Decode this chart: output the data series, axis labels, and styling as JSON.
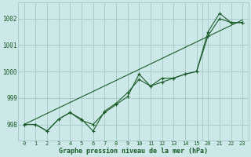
{
  "xlabel": "Graphe pression niveau de la mer (hPa)",
  "bg_color": "#cce8e8",
  "grid_color": "#aacccc",
  "line_color": "#1a5c28",
  "marker_color": "#1a5c28",
  "series1": [
    [
      0,
      998.0
    ],
    [
      1,
      998.0
    ],
    [
      2,
      997.75
    ],
    [
      3,
      998.2
    ],
    [
      4,
      998.45
    ],
    [
      5,
      998.15
    ],
    [
      6,
      998.0
    ],
    [
      7,
      998.45
    ],
    [
      8,
      998.75
    ],
    [
      9,
      999.05
    ],
    [
      10,
      999.9
    ],
    [
      11,
      999.45
    ],
    [
      12,
      999.75
    ],
    [
      13,
      999.75
    ],
    [
      14,
      999.9
    ],
    [
      15,
      1000.0
    ],
    [
      20,
      1001.5
    ],
    [
      21,
      1002.2
    ],
    [
      22,
      1001.85
    ],
    [
      23,
      1001.85
    ]
  ],
  "series2": [
    [
      0,
      998.0
    ],
    [
      1,
      998.0
    ],
    [
      2,
      997.75
    ],
    [
      3,
      998.2
    ],
    [
      4,
      998.45
    ],
    [
      5,
      998.2
    ],
    [
      6,
      997.75
    ],
    [
      7,
      998.5
    ],
    [
      8,
      998.8
    ],
    [
      9,
      999.2
    ],
    [
      10,
      999.7
    ],
    [
      11,
      999.45
    ],
    [
      12,
      999.6
    ],
    [
      13,
      999.75
    ],
    [
      14,
      999.9
    ],
    [
      15,
      1000.0
    ],
    [
      20,
      1001.35
    ],
    [
      21,
      1002.0
    ],
    [
      22,
      1001.85
    ],
    [
      23,
      1001.85
    ]
  ],
  "trend_line": [
    [
      0,
      998.0
    ],
    [
      23,
      1001.95
    ]
  ],
  "xtick_labels": [
    "0",
    "1",
    "2",
    "3",
    "4",
    "5",
    "6",
    "7",
    "8",
    "9",
    "10",
    "11",
    "12",
    "13",
    "14",
    "15",
    "20",
    "21",
    "22",
    "23"
  ],
  "xtick_positions": [
    0,
    1,
    2,
    3,
    4,
    5,
    6,
    7,
    8,
    9,
    10,
    11,
    12,
    13,
    14,
    15,
    16,
    17,
    18,
    19
  ],
  "xlim": [
    -0.5,
    19.5
  ],
  "ylim": [
    997.4,
    1002.6
  ],
  "ytick_labels": [
    "998",
    "999",
    "1000",
    "1001",
    "1002"
  ],
  "ytick_values": [
    998,
    999,
    1000,
    1001,
    1002
  ]
}
